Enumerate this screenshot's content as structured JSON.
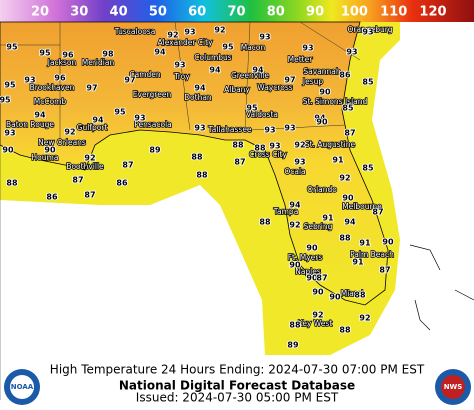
{
  "scale": {
    "labels": [
      "20",
      "30",
      "40",
      "50",
      "60",
      "70",
      "80",
      "90",
      "100",
      "110",
      "120"
    ]
  },
  "cities": [
    "Tuscaloosa",
    "Alexander City",
    "Macon",
    "Orangeburg",
    "Jackson",
    "Meridian",
    "Columbus",
    "Metter",
    "Savannah",
    "Camden",
    "Troy",
    "Greenville",
    "Jesup",
    "Brookhaven",
    "Evergreen",
    "Dothan",
    "Albany",
    "Waycross",
    "McComb",
    "St. Simons Island",
    "Baton Rouge",
    "Gulfport",
    "Pensacola",
    "Tallahassee",
    "Valdosta",
    "New Orleans",
    "Houma",
    "Boothville",
    "Cross City",
    "St. Augustine",
    "Ocala",
    "Orlando",
    "Melbourne",
    "Tampa",
    "Sebring",
    "Ft. Myers",
    "Palm Beach",
    "Naples",
    "Miami",
    "Key West"
  ],
  "temps": [
    "95",
    "95",
    "96",
    "98",
    "94",
    "92",
    "93",
    "92",
    "95",
    "93",
    "93",
    "93",
    "93",
    "95",
    "93",
    "96",
    "97",
    "97",
    "93",
    "94",
    "94",
    "97",
    "86",
    "85",
    "95",
    "94",
    "94",
    "95",
    "94",
    "95",
    "90",
    "85",
    "93",
    "92",
    "93",
    "93",
    "93",
    "93",
    "94",
    "90",
    "87",
    "90",
    "90",
    "92",
    "87",
    "89",
    "88",
    "88",
    "87",
    "88",
    "93",
    "92",
    "93",
    "91",
    "85",
    "88",
    "86",
    "87",
    "87",
    "86",
    "88",
    "92",
    "90",
    "94",
    "87",
    "91",
    "88",
    "94",
    "92",
    "88",
    "91",
    "90",
    "90",
    "91",
    "87",
    "90",
    "90",
    "90",
    "90",
    "88",
    "92",
    "88",
    "88",
    "89",
    "92",
    "87"
  ],
  "footer": {
    "line1": "High Temperature 24 Hours Ending: 2024-07-30 07:00 PM EST",
    "line2": "National Digital Forecast Database",
    "line3": "Issued: 2024-07-30 05:00 PM EST"
  },
  "logos": {
    "left": "NOAA",
    "right": "NWS"
  }
}
